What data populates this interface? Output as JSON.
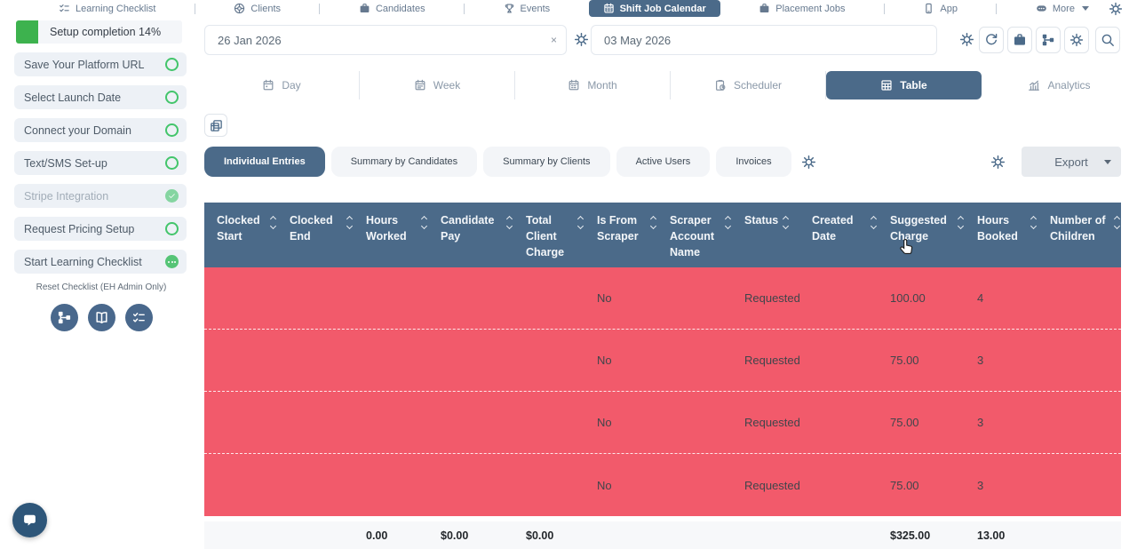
{
  "colors": {
    "accent_slate": "#4b6a89",
    "row_red": "#f25a6b",
    "green": "#3db24e",
    "green_light": "#85d5a1",
    "green_mid": "#55c476",
    "footer_bg": "#f7f8fa"
  },
  "nav": {
    "items": [
      {
        "label": "Learning Checklist",
        "icon": "checklist",
        "selected": false
      },
      {
        "label": "Clients",
        "icon": "ring",
        "selected": false
      },
      {
        "label": "Candidates",
        "icon": "briefcase",
        "selected": false
      },
      {
        "label": "Events",
        "icon": "trophy",
        "selected": false
      },
      {
        "label": "Shift Job Calendar",
        "icon": "calendar",
        "selected": true
      },
      {
        "label": "Placement Jobs",
        "icon": "briefcase",
        "selected": false
      },
      {
        "label": "App",
        "icon": "phone",
        "selected": false
      },
      {
        "label": "More",
        "icon": "more",
        "selected": false,
        "caret": true
      }
    ]
  },
  "sidebar": {
    "setup_header": "Setup completion 14%",
    "items": [
      {
        "label": "Save Your Platform URL",
        "state": "todo"
      },
      {
        "label": "Select Launch Date",
        "state": "todo"
      },
      {
        "label": "Connect your Domain",
        "state": "todo"
      },
      {
        "label": "Text/SMS Set-up",
        "state": "todo"
      },
      {
        "label": "Stripe Integration",
        "state": "done"
      },
      {
        "label": "Request Pricing Setup",
        "state": "todo"
      },
      {
        "label": "Start Learning Checklist",
        "state": "in-progress"
      }
    ],
    "reset_label": "Reset Checklist (EH Admin Only)",
    "footer_icons": [
      "sitemap",
      "book",
      "tasks"
    ]
  },
  "toolbar": {
    "date_from": "26 Jan 2026",
    "date_to": "03 May 2026",
    "buttons": [
      "refresh",
      "briefcase",
      "sitemap",
      "gear",
      "search"
    ]
  },
  "view_tabs": [
    {
      "label": "Day",
      "icon": "cal-day",
      "selected": false
    },
    {
      "label": "Week",
      "icon": "cal-week",
      "selected": false
    },
    {
      "label": "Month",
      "icon": "cal-month",
      "selected": false
    },
    {
      "label": "Scheduler",
      "icon": "scheduler",
      "selected": false
    },
    {
      "label": "Table",
      "icon": "table",
      "selected": true
    },
    {
      "label": "Analytics",
      "icon": "analytics",
      "selected": false
    }
  ],
  "filter_tabs": [
    {
      "label": "Individual Entries",
      "selected": true
    },
    {
      "label": "Summary by Candidates",
      "selected": false
    },
    {
      "label": "Summary by Clients",
      "selected": false
    },
    {
      "label": "Active Users",
      "selected": false
    },
    {
      "label": "Invoices",
      "selected": false
    }
  ],
  "export": {
    "label": "Export"
  },
  "table": {
    "columns": [
      {
        "label": "Clocked Start"
      },
      {
        "label": "Clocked End"
      },
      {
        "label": "Hours Worked"
      },
      {
        "label": "Candidate Pay"
      },
      {
        "label": "Total Client Charge"
      },
      {
        "label": "Is From Scraper"
      },
      {
        "label": "Scraper Account Name"
      },
      {
        "label": "Status"
      },
      {
        "label": "Created Date"
      },
      {
        "label": "Suggested Charge"
      },
      {
        "label": "Hours Booked"
      },
      {
        "label": "Number of Children"
      }
    ],
    "rows": [
      [
        "",
        "",
        "",
        "",
        "",
        "No",
        "",
        "Requested",
        "",
        "100.00",
        "4",
        ""
      ],
      [
        "",
        "",
        "",
        "",
        "",
        "No",
        "",
        "Requested",
        "",
        "75.00",
        "3",
        ""
      ],
      [
        "",
        "",
        "",
        "",
        "",
        "No",
        "",
        "Requested",
        "",
        "75.00",
        "3",
        ""
      ],
      [
        "",
        "",
        "",
        "",
        "",
        "No",
        "",
        "Requested",
        "",
        "75.00",
        "3",
        ""
      ]
    ],
    "totals": [
      "",
      "",
      "0.00",
      "$0.00",
      "$0.00",
      "",
      "",
      "",
      "",
      "$325.00",
      "13.00",
      ""
    ]
  }
}
